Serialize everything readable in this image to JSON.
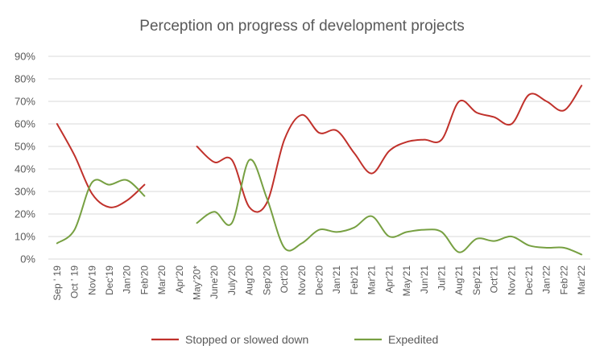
{
  "chart_data": {
    "type": "line",
    "title": "Perception on progress of development projects",
    "xlabel": "",
    "ylabel": "",
    "ylim": [
      0,
      90
    ],
    "yticks": [
      "0%",
      "10%",
      "20%",
      "30%",
      "40%",
      "50%",
      "60%",
      "70%",
      "80%",
      "90%"
    ],
    "categories": [
      "Sep ' 19",
      "Oct ' 19",
      "Nov'19",
      "Dec'19",
      "Jan'20",
      "Feb'20",
      "Mar'20",
      "Apr'20",
      "May'20*",
      "June'20",
      "July'20",
      "Aug'20",
      "Sep'20",
      "Oct'20",
      "Nov'20",
      "Dec'20",
      "Jan'21",
      "Feb'21",
      "Mar'21",
      "Apr'21",
      "May'21",
      "Jun'21",
      "Jul'21",
      "Aug'21",
      "Sep'21",
      "Oct'21",
      "Nov'21",
      "Dec'21",
      "Jan'22",
      "Feb'22",
      "Mar'22"
    ],
    "series": [
      {
        "name": "Stopped or slowed down",
        "color": "#c0312b",
        "values": [
          60,
          46,
          29,
          23,
          26,
          33,
          null,
          null,
          50,
          43,
          44,
          23,
          25,
          53,
          64,
          56,
          57,
          47,
          38,
          48,
          52,
          53,
          53,
          70,
          65,
          63,
          60,
          73,
          70,
          66,
          77
        ]
      },
      {
        "name": "Expedited",
        "color": "#77a042",
        "values": [
          7,
          13,
          34,
          33,
          35,
          28,
          null,
          null,
          16,
          21,
          16,
          44,
          27,
          5,
          7,
          13,
          12,
          14,
          19,
          10,
          12,
          13,
          12,
          3,
          9,
          8,
          10,
          6,
          5,
          5,
          2
        ]
      }
    ],
    "legend": "bottom"
  }
}
